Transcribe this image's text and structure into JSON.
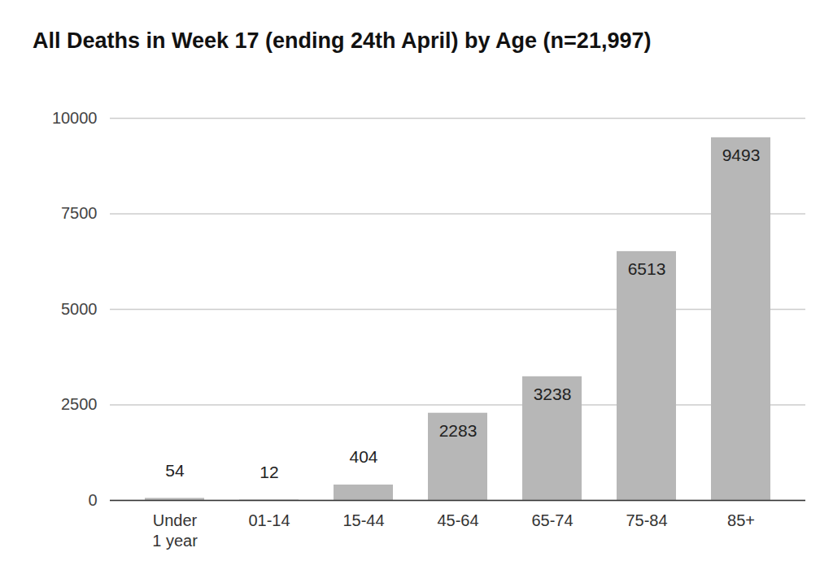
{
  "chart_data": {
    "type": "bar",
    "title": "All Deaths in Week 17 (ending 24th April) by Age (n=21,997)",
    "categories": [
      "Under 1 year",
      "01-14",
      "15-44",
      "45-64",
      "65-74",
      "75-84",
      "85+"
    ],
    "values": [
      54,
      12,
      404,
      2283,
      3238,
      6513,
      9493
    ],
    "color": "#b7b7b7",
    "ylim": [
      0,
      10000
    ],
    "yticks": [
      0,
      2500,
      5000,
      7500,
      10000
    ],
    "grid": true,
    "data_labels": true
  }
}
